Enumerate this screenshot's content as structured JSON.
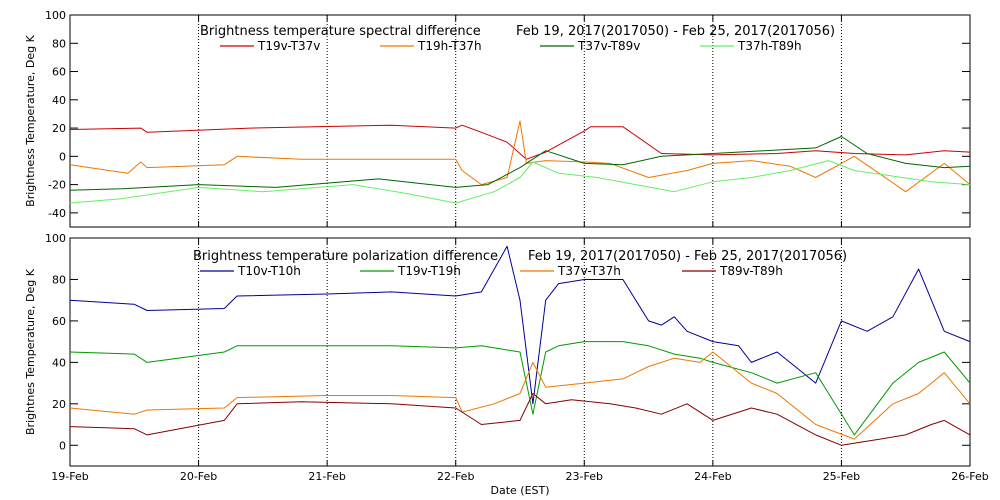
{
  "chart_data": [
    {
      "type": "line",
      "title": "Brightness temperature spectral difference",
      "date_range": "Feb 19, 2017(2017050) - Feb 25, 2017(2017056)",
      "ylabel": "Brightness Temperature, Deg K",
      "xlim": [
        0,
        7
      ],
      "ylim": [
        -50,
        100
      ],
      "yticks": [
        -40,
        -20,
        0,
        20,
        40,
        60,
        80,
        100
      ],
      "grid": "vertical-dotted",
      "series": [
        {
          "name": "T19v-T37v",
          "color": "#cc0000",
          "x": [
            0,
            0.55,
            0.6,
            1.4,
            2.5,
            3.0,
            3.05,
            3.2,
            3.4,
            3.55,
            3.7,
            4.0,
            4.05,
            4.3,
            4.6,
            5.0,
            5.5,
            5.8,
            6.1,
            6.5,
            6.8,
            7.0
          ],
          "y": [
            19,
            20,
            17,
            20,
            22,
            20,
            22,
            17,
            10,
            -2,
            3,
            18,
            21,
            21,
            2,
            1,
            2,
            4,
            2,
            1,
            4,
            3
          ]
        },
        {
          "name": "T19h-T37h",
          "color": "#ee7700",
          "x": [
            0,
            0.45,
            0.55,
            0.6,
            1.2,
            1.3,
            1.8,
            2.5,
            3.0,
            3.05,
            3.2,
            3.4,
            3.5,
            3.55,
            3.7,
            4.0,
            4.2,
            4.5,
            4.8,
            5.0,
            5.3,
            5.6,
            5.8,
            6.1,
            6.5,
            6.8,
            7.0
          ],
          "y": [
            -6,
            -12,
            -4,
            -8,
            -6,
            0,
            -2,
            -2,
            -2,
            -10,
            -20,
            -15,
            25,
            -5,
            -3,
            -4,
            -5,
            -15,
            -10,
            -5,
            -3,
            -7,
            -15,
            0,
            -25,
            -5,
            -20
          ]
        },
        {
          "name": "T37v-T89v",
          "color": "#006600",
          "x": [
            0,
            0.4,
            1.0,
            1.6,
            2.4,
            2.6,
            3.0,
            3.25,
            3.5,
            3.7,
            4.0,
            4.3,
            4.6,
            5.0,
            5.4,
            5.8,
            6.0,
            6.2,
            6.5,
            6.8,
            7.0
          ],
          "y": [
            -24,
            -23,
            -20,
            -22,
            -16,
            -18,
            -22,
            -20,
            -8,
            4,
            -5,
            -6,
            0,
            2,
            4,
            6,
            14,
            2,
            -5,
            -8,
            -7
          ]
        },
        {
          "name": "T37h-T89h",
          "color": "#66ee66",
          "x": [
            0,
            0.4,
            1.0,
            1.5,
            2.2,
            2.6,
            3.0,
            3.3,
            3.5,
            3.6,
            3.8,
            4.1,
            4.4,
            4.7,
            5.0,
            5.3,
            5.6,
            5.9,
            6.1,
            6.4,
            6.7,
            7.0
          ],
          "y": [
            -33,
            -30,
            -22,
            -25,
            -20,
            -26,
            -33,
            -25,
            -15,
            -4,
            -12,
            -15,
            -20,
            -25,
            -18,
            -15,
            -10,
            -3,
            -10,
            -14,
            -18,
            -20
          ]
        }
      ],
      "x_tick_labels": [
        "19-Feb",
        "20-Feb",
        "21-Feb",
        "22-Feb",
        "23-Feb",
        "24-Feb",
        "25-Feb",
        "26-Feb"
      ]
    },
    {
      "type": "line",
      "title": "Brightness temperature polarization difference",
      "date_range": "Feb 19, 2017(2017050) - Feb 25, 2017(2017056)",
      "ylabel": "Brightnes Temperature, Deg K",
      "xlabel": "Date (EST)",
      "xlim": [
        0,
        7
      ],
      "ylim": [
        -10,
        100
      ],
      "yticks": [
        0,
        20,
        40,
        60,
        80,
        100
      ],
      "grid": "vertical-dotted",
      "series": [
        {
          "name": "T10v-T10h",
          "color": "#000099",
          "x": [
            0,
            0.5,
            0.6,
            1.2,
            1.3,
            2.0,
            2.5,
            3.0,
            3.2,
            3.4,
            3.5,
            3.6,
            3.7,
            3.8,
            4.0,
            4.3,
            4.5,
            4.6,
            4.7,
            4.8,
            5.0,
            5.2,
            5.3,
            5.5,
            5.8,
            6.0,
            6.2,
            6.4,
            6.6,
            6.8,
            7.0
          ],
          "y": [
            70,
            68,
            65,
            66,
            72,
            73,
            74,
            72,
            74,
            96,
            70,
            20,
            70,
            78,
            80,
            80,
            60,
            58,
            62,
            55,
            50,
            48,
            40,
            45,
            30,
            60,
            55,
            62,
            85,
            55,
            50
          ]
        },
        {
          "name": "T19v-T19h",
          "color": "#009900",
          "x": [
            0,
            0.5,
            0.6,
            1.2,
            1.3,
            2.0,
            2.5,
            3.0,
            3.2,
            3.5,
            3.6,
            3.7,
            3.8,
            4.0,
            4.3,
            4.5,
            4.7,
            4.9,
            5.0,
            5.3,
            5.5,
            5.8,
            6.1,
            6.4,
            6.6,
            6.8,
            7.0
          ],
          "y": [
            45,
            44,
            40,
            45,
            48,
            48,
            48,
            47,
            48,
            45,
            15,
            45,
            48,
            50,
            50,
            48,
            44,
            42,
            40,
            35,
            30,
            35,
            5,
            30,
            40,
            45,
            30
          ]
        },
        {
          "name": "T37v-T37h",
          "color": "#ee7700",
          "x": [
            0,
            0.5,
            0.6,
            1.2,
            1.3,
            2.0,
            2.5,
            3.0,
            3.05,
            3.3,
            3.5,
            3.6,
            3.7,
            4.0,
            4.3,
            4.5,
            4.7,
            4.9,
            5.0,
            5.3,
            5.5,
            5.8,
            6.1,
            6.4,
            6.6,
            6.8,
            7.0
          ],
          "y": [
            18,
            15,
            17,
            18,
            23,
            24,
            24,
            23,
            16,
            20,
            25,
            40,
            28,
            30,
            32,
            38,
            42,
            40,
            45,
            30,
            25,
            10,
            3,
            20,
            25,
            35,
            20
          ]
        },
        {
          "name": "T89v-T89h",
          "color": "#880000",
          "x": [
            0,
            0.5,
            0.6,
            1.2,
            1.3,
            1.8,
            2.5,
            3.0,
            3.2,
            3.5,
            3.6,
            3.7,
            3.9,
            4.2,
            4.4,
            4.6,
            4.8,
            5.0,
            5.3,
            5.5,
            5.8,
            6.0,
            6.3,
            6.5,
            6.7,
            6.8,
            7.0
          ],
          "y": [
            9,
            8,
            5,
            12,
            20,
            21,
            20,
            18,
            10,
            12,
            25,
            20,
            22,
            20,
            18,
            15,
            20,
            12,
            18,
            15,
            5,
            0,
            3,
            5,
            10,
            12,
            5
          ]
        }
      ],
      "x_tick_labels": [
        "19-Feb",
        "20-Feb",
        "21-Feb",
        "22-Feb",
        "23-Feb",
        "24-Feb",
        "25-Feb",
        "26-Feb"
      ]
    }
  ]
}
